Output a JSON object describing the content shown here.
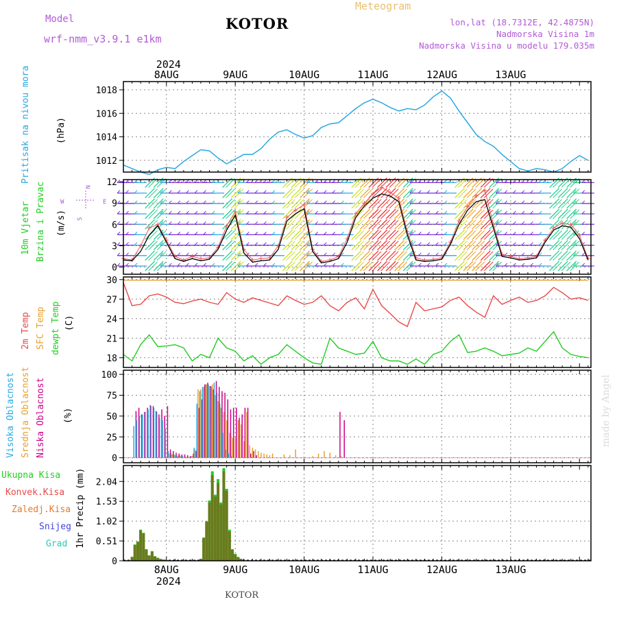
{
  "header": {
    "model_label": "Model",
    "model_name": "wrf-nmm_v3.9.1 e1km",
    "station": "KOTOR",
    "title": "Meteogram",
    "loc_line1": "lon,lat (18.7312E, 42.4875N)",
    "loc_line2": "Nadmorska Visina 1m",
    "loc_line3": "Nadmorska Visina u modelu 179.035m"
  },
  "time_axis": {
    "year": "2024",
    "days": [
      "8AUG",
      "9AUG",
      "10AUG",
      "11AUG",
      "12AUG",
      "13AUG"
    ]
  },
  "footer": "KOTOR",
  "credit": "made by Angel",
  "colors": {
    "pressure": "#29a8e0",
    "wind_speed": "#000000",
    "gust": "#e85a5a",
    "temp2m": "#e84848",
    "sfc_temp": "#e8a030",
    "dewpoint": "#22cc22",
    "cloud_high": "#29a8e0",
    "cloud_mid": "#e8a030",
    "cloud_low": "#cc0088",
    "total_precip": "#22cc22",
    "conv_precip": "#e84848",
    "grid_precip": "#e87828",
    "snow": "#4444dd",
    "graupel": "#22ccbb",
    "grid": "#888888"
  },
  "chart_data": [
    {
      "type": "line",
      "name": "pressure",
      "ylabel_a": "Pritisak na nivou mora",
      "ylabel_b": "(hPa)",
      "yticks": [
        1012,
        1014,
        1016,
        1018
      ],
      "ylim": [
        1011.0,
        1018.7
      ],
      "x_hours": [
        0,
        3,
        6,
        9,
        12,
        15,
        18,
        21,
        24,
        27,
        30,
        33,
        36,
        39,
        42,
        45,
        48,
        51,
        54,
        57,
        60,
        63,
        66,
        69,
        72,
        75,
        78,
        81,
        84,
        87,
        90,
        93,
        96,
        99,
        102,
        105,
        108,
        111,
        114,
        117,
        120,
        123,
        126,
        129,
        132,
        135,
        138,
        141,
        144,
        147,
        150,
        153,
        156,
        159,
        162
      ],
      "values": [
        1011.6,
        1011.3,
        1011.0,
        1010.8,
        1011.2,
        1011.4,
        1011.3,
        1011.9,
        1012.4,
        1012.9,
        1012.8,
        1012.2,
        1011.7,
        1012.1,
        1012.5,
        1012.5,
        1013.0,
        1013.8,
        1014.4,
        1014.6,
        1014.2,
        1013.9,
        1014.1,
        1014.8,
        1015.1,
        1015.2,
        1015.8,
        1016.4,
        1016.9,
        1017.2,
        1016.9,
        1016.5,
        1016.2,
        1016.4,
        1016.3,
        1016.7,
        1017.4,
        1017.9,
        1017.3,
        1016.2,
        1015.2,
        1014.2,
        1013.6,
        1013.2,
        1012.5,
        1011.9,
        1011.3,
        1011.1,
        1011.3,
        1011.2,
        1011.0,
        1011.3,
        1011.9,
        1012.4,
        1012.0
      ],
      "grid": true
    },
    {
      "type": "line",
      "name": "wind",
      "ylabel_a": "10m Vjetar",
      "ylabel_b": "Brzina i Pravac",
      "ylabel_c": "(m/s)",
      "compass": [
        "W",
        "E",
        "N",
        "S"
      ],
      "yticks": [
        0,
        3,
        6,
        9,
        12
      ],
      "ylim": [
        -1,
        12.3
      ],
      "x_hours": [
        0,
        3,
        6,
        9,
        12,
        15,
        18,
        21,
        24,
        27,
        30,
        33,
        36,
        39,
        42,
        45,
        48,
        51,
        54,
        57,
        60,
        63,
        66,
        69,
        72,
        75,
        78,
        81,
        84,
        87,
        90,
        93,
        96,
        99,
        102,
        105,
        108,
        111,
        114,
        117,
        120,
        123,
        126,
        129,
        132,
        135,
        138,
        141,
        144,
        147,
        150,
        153,
        156,
        159,
        162
      ],
      "speed": [
        1.0,
        0.9,
        2.2,
        4.5,
        5.8,
        3.5,
        1.2,
        0.8,
        1.2,
        0.9,
        1.1,
        2.5,
        5.2,
        7.3,
        2.0,
        0.7,
        0.9,
        1.0,
        2.5,
        6.5,
        7.5,
        8.2,
        2.2,
        0.6,
        0.8,
        1.2,
        3.5,
        7.0,
        8.6,
        9.7,
        10.3,
        10.0,
        9.2,
        4.5,
        1.0,
        0.8,
        0.9,
        1.1,
        3.2,
        6.0,
        8.0,
        9.2,
        9.5,
        5.5,
        1.5,
        1.3,
        1.0,
        1.1,
        1.3,
        3.5,
        5.2,
        5.8,
        5.6,
        4.0,
        1.0
      ],
      "gust": [
        1.2,
        1.0,
        3.0,
        5.5,
        6.0,
        3.8,
        1.5,
        1.0,
        1.5,
        1.2,
        1.3,
        2.8,
        5.8,
        7.8,
        2.5,
        1.0,
        1.2,
        1.3,
        3.0,
        7.0,
        8.0,
        8.8,
        2.5,
        0.8,
        1.0,
        1.5,
        4.0,
        7.5,
        9.0,
        10.3,
        11.2,
        10.5,
        9.7,
        5.0,
        1.3,
        1.0,
        1.1,
        1.3,
        3.5,
        6.5,
        8.5,
        10.0,
        10.8,
        6.0,
        1.8,
        1.5,
        1.2,
        1.3,
        1.5,
        3.8,
        5.5,
        6.2,
        6.0,
        4.5,
        1.2
      ],
      "grid": true
    },
    {
      "type": "line",
      "name": "temperature",
      "ylabel_a": "2m Temp",
      "ylabel_b": "SFC Temp",
      "ylabel_c": "dewpt Temp",
      "ylabel_d": "(C)",
      "yticks": [
        18,
        21,
        24,
        27,
        30
      ],
      "ylim": [
        16.5,
        30.4
      ],
      "x_hours": [
        0,
        3,
        6,
        9,
        12,
        15,
        18,
        21,
        24,
        27,
        30,
        33,
        36,
        39,
        42,
        45,
        48,
        51,
        54,
        57,
        60,
        63,
        66,
        69,
        72,
        75,
        78,
        81,
        84,
        87,
        90,
        93,
        96,
        99,
        102,
        105,
        108,
        111,
        114,
        117,
        120,
        123,
        126,
        129,
        132,
        135,
        138,
        141,
        144,
        147,
        150,
        153,
        156,
        159,
        162
      ],
      "series": [
        {
          "name": "2m Temp",
          "values": [
            29.5,
            26.0,
            26.2,
            27.5,
            27.8,
            27.3,
            26.5,
            26.3,
            26.7,
            27.0,
            26.5,
            26.2,
            28.0,
            27.0,
            26.5,
            27.2,
            26.8,
            26.4,
            26.0,
            27.5,
            26.8,
            26.2,
            26.5,
            27.5,
            26.0,
            25.2,
            26.5,
            27.2,
            25.5,
            28.5,
            26.0,
            24.8,
            23.5,
            22.8,
            26.5,
            25.2,
            25.5,
            25.8,
            26.8,
            27.3,
            26.0,
            25.0,
            24.2,
            27.5,
            26.2,
            26.8,
            27.3,
            26.5,
            26.8,
            27.5,
            28.8,
            28.0,
            27.0,
            27.2,
            26.8
          ]
        },
        {
          "name": "SFC Temp",
          "values": [
            29.9,
            29.9,
            29.9,
            29.9,
            29.9,
            29.9,
            29.9,
            29.9,
            29.9,
            29.9,
            29.9,
            29.9,
            29.9,
            29.9,
            29.9,
            29.9,
            29.9,
            29.9,
            29.9,
            29.9,
            29.9,
            29.9,
            29.9,
            29.9,
            29.9,
            29.9,
            29.9,
            29.9,
            29.9,
            29.9,
            29.9,
            29.9,
            29.9,
            29.9,
            29.9,
            29.9,
            29.9,
            29.9,
            29.9,
            29.9,
            29.9,
            29.9,
            29.9,
            29.9,
            29.9,
            29.9,
            29.9,
            29.9,
            29.9,
            29.9,
            29.9,
            29.9,
            29.9,
            29.9,
            29.9
          ]
        },
        {
          "name": "dewpt Temp",
          "values": [
            18.5,
            17.5,
            20.0,
            21.5,
            19.7,
            19.8,
            20.0,
            19.5,
            17.5,
            18.5,
            18.0,
            21.0,
            19.5,
            19.0,
            17.5,
            18.3,
            17.0,
            18.0,
            18.5,
            20.0,
            19.0,
            18.0,
            17.2,
            17.0,
            21.0,
            19.5,
            19.0,
            18.5,
            18.7,
            20.5,
            18.0,
            17.5,
            17.5,
            17.0,
            17.8,
            17.0,
            18.5,
            19.0,
            20.5,
            21.5,
            18.8,
            19.0,
            19.5,
            19.0,
            18.3,
            18.5,
            18.7,
            19.5,
            19.0,
            20.5,
            22.0,
            19.5,
            18.5,
            18.2,
            18.0
          ]
        }
      ],
      "grid": true
    },
    {
      "type": "bar",
      "name": "cloud_cover",
      "ylabel_a": "Visoka Oblacnost",
      "ylabel_b": "Srednja Oblacnost",
      "ylabel_c": "Niska Oblacnost",
      "ylabel_d": "(%)",
      "yticks": [
        0,
        25,
        50,
        75,
        100
      ],
      "ylim": [
        -6,
        105
      ],
      "x_hours": [
        4,
        5,
        6,
        7,
        8,
        9,
        10,
        11,
        12,
        13,
        14,
        15,
        16,
        17,
        18,
        19,
        20,
        21,
        22,
        23,
        24,
        25,
        26,
        27,
        28,
        29,
        30,
        31,
        32,
        33,
        34,
        35,
        36,
        37,
        38,
        39,
        40,
        41,
        42,
        43,
        44,
        45,
        46,
        47,
        48,
        49,
        50,
        51,
        52,
        54,
        56,
        58,
        60,
        62,
        64,
        66,
        68,
        70,
        72,
        74,
        76
      ],
      "series": [
        {
          "name": "Visoka Oblacnost",
          "values": [
            38,
            45,
            50,
            52,
            55,
            58,
            62,
            60,
            55,
            48,
            45,
            35,
            8,
            5,
            4,
            3,
            3,
            2,
            1,
            1,
            2,
            12,
            65,
            80,
            85,
            88,
            88,
            85,
            90,
            78,
            65,
            30,
            10,
            5,
            2,
            0,
            0,
            0,
            0,
            0,
            0,
            0,
            0,
            0,
            0,
            0,
            0,
            0,
            0,
            0,
            0,
            0,
            0,
            0,
            0,
            0,
            0,
            0,
            0,
            0,
            0
          ]
        },
        {
          "name": "Srednja Oblacnost",
          "values": [
            0,
            0,
            0,
            0,
            0,
            0,
            0,
            0,
            0,
            0,
            0,
            0,
            5,
            4,
            3,
            2,
            2,
            1,
            1,
            1,
            2,
            10,
            82,
            82,
            85,
            88,
            86,
            88,
            75,
            68,
            60,
            55,
            45,
            30,
            24,
            24,
            45,
            40,
            20,
            55,
            15,
            12,
            10,
            8,
            6,
            5,
            4,
            3,
            5,
            0,
            4,
            3,
            10,
            0,
            0,
            2,
            5,
            8,
            6,
            3,
            2
          ]
        },
        {
          "name": "Niska Oblacnost",
          "values": [
            56,
            60,
            52,
            55,
            60,
            63,
            62,
            56,
            52,
            58,
            50,
            62,
            10,
            8,
            6,
            5,
            4,
            4,
            3,
            2,
            5,
            8,
            60,
            70,
            88,
            90,
            86,
            82,
            92,
            85,
            80,
            78,
            70,
            58,
            60,
            60,
            48,
            52,
            60,
            60,
            5,
            8,
            3,
            0,
            0,
            0,
            0,
            0,
            0,
            0,
            0,
            0,
            0,
            0,
            0,
            0,
            0,
            0,
            0,
            0,
            0
          ]
        }
      ],
      "extra_spikes": [
        {
          "x": 75.5,
          "value": 55
        },
        {
          "x": 77,
          "value": 45
        }
      ],
      "grid": true
    },
    {
      "type": "bar",
      "name": "precipitation",
      "legend": [
        "Ukupna Kisa",
        "Konvek.Kisa",
        "Zaledj.Kisa",
        "Snijeg",
        "Grad"
      ],
      "ylabel": "1hr Precip (mm)",
      "yticks": [
        0,
        0.51,
        1.02,
        1.53,
        2.04
      ],
      "ylim": [
        0,
        2.45
      ],
      "x_hours": [
        2,
        3,
        4,
        5,
        6,
        7,
        8,
        9,
        10,
        11,
        12,
        13,
        14,
        15,
        16,
        17,
        18,
        19,
        20,
        21,
        22,
        23,
        24,
        25,
        26,
        27,
        28,
        29,
        30,
        31,
        32,
        33,
        34,
        35,
        36,
        37,
        38,
        39,
        40,
        41,
        42
      ],
      "series": [
        {
          "name": "Ukupna Kisa",
          "values": [
            0.0,
            0.1,
            0.42,
            0.5,
            0.8,
            0.72,
            0.3,
            0.14,
            0.25,
            0.12,
            0.08,
            0.05,
            0.03,
            0.02,
            0.01,
            0.0,
            0.0,
            0.0,
            0.0,
            0.0,
            0.0,
            0.0,
            0.0,
            0.0,
            0.0,
            0.05,
            0.6,
            1.02,
            1.55,
            2.3,
            1.7,
            2.1,
            1.5,
            2.38,
            1.85,
            0.8,
            0.3,
            0.18,
            0.1,
            0.05,
            0.0
          ]
        },
        {
          "name": "Konvek.Kisa",
          "values": [
            0.0,
            0.1,
            0.4,
            0.48,
            0.78,
            0.7,
            0.28,
            0.13,
            0.23,
            0.11,
            0.07,
            0.04,
            0.03,
            0.02,
            0.01,
            0.0,
            0.0,
            0.0,
            0.0,
            0.0,
            0.0,
            0.0,
            0.0,
            0.0,
            0.0,
            0.05,
            0.58,
            1.0,
            1.5,
            2.2,
            1.65,
            2.0,
            1.45,
            2.3,
            1.8,
            0.75,
            0.28,
            0.16,
            0.09,
            0.05,
            0.0
          ]
        }
      ],
      "grid": true
    }
  ]
}
